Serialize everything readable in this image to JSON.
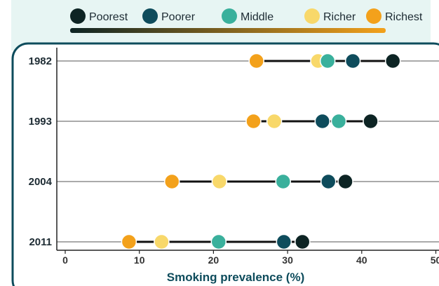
{
  "chart_data": {
    "type": "scatter",
    "subtype": "dot-plot",
    "xlabel": "Smoking prevalence (%)",
    "xlim": [
      0,
      50
    ],
    "xticks": [
      0,
      10,
      20,
      30,
      40,
      50
    ],
    "tick_labels": [
      "0",
      "10",
      "20",
      "30",
      "40",
      "50"
    ],
    "categories": [
      "1982",
      "1993",
      "2004",
      "2011"
    ],
    "series": [
      {
        "name": "Poorest",
        "color": "#0d2424",
        "values": [
          44.2,
          41.2,
          37.8,
          32.0
        ]
      },
      {
        "name": "Poorer",
        "color": "#0e4c5c",
        "values": [
          38.8,
          34.7,
          35.5,
          29.5
        ]
      },
      {
        "name": "Middle",
        "color": "#3ab09c",
        "values": [
          35.4,
          36.9,
          29.4,
          20.7
        ]
      },
      {
        "name": "Richer",
        "color": "#f8d86a",
        "values": [
          34.1,
          28.2,
          20.8,
          13.0
        ]
      },
      {
        "name": "Richest",
        "color": "#f3a11b",
        "values": [
          25.8,
          25.4,
          14.4,
          8.6
        ]
      }
    ],
    "legend_position": "top",
    "grid": false
  },
  "colors": {
    "panel_bg": "#e7f5f3",
    "frame": "#0e4c5c",
    "axis_title": "#0e4c5c",
    "gradient_start": "#0d2424",
    "gradient_end": "#f3a11b"
  }
}
